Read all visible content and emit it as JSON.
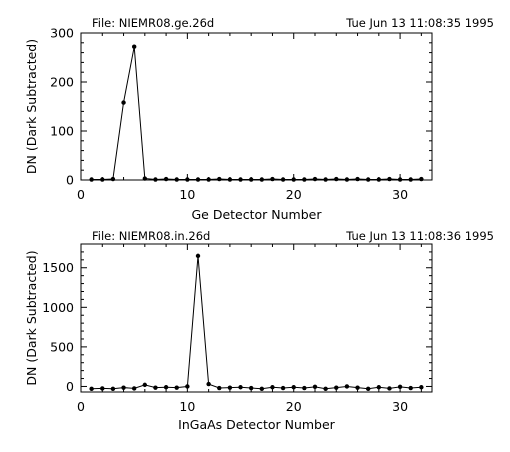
{
  "chart_data": [
    {
      "type": "line",
      "file_label": "File: NIEMR08.ge.26d",
      "timestamp": "Tue Jun 13 11:08:35 1995",
      "xlabel": "Ge Detector Number",
      "ylabel": "DN (Dark Subtracted)",
      "xlim": [
        0,
        33
      ],
      "ylim": [
        0,
        300
      ],
      "xticks": [
        0,
        10,
        20,
        30
      ],
      "yticks": [
        0,
        100,
        200,
        300
      ],
      "x": [
        1,
        2,
        3,
        4,
        5,
        6,
        7,
        8,
        9,
        10,
        11,
        12,
        13,
        14,
        15,
        16,
        17,
        18,
        19,
        20,
        21,
        22,
        23,
        24,
        25,
        26,
        27,
        28,
        29,
        30,
        31,
        32
      ],
      "y": [
        1,
        1,
        2,
        158,
        272,
        3,
        1,
        2,
        1,
        1,
        1,
        1,
        2,
        1,
        1,
        1,
        1,
        2,
        1,
        1,
        1,
        2,
        1,
        2,
        1,
        2,
        1,
        1,
        2,
        1,
        1,
        2
      ]
    },
    {
      "type": "line",
      "file_label": "File: NIEMR08.in.26d",
      "timestamp": "Tue Jun 13 11:08:36 1995",
      "xlabel": "InGaAs Detector Number",
      "ylabel": "DN (Dark Subtracted)",
      "xlim": [
        0,
        33
      ],
      "ylim": [
        -70,
        1800
      ],
      "xticks": [
        0,
        10,
        20,
        30
      ],
      "yticks": [
        0,
        500,
        1000,
        1500
      ],
      "x": [
        1,
        2,
        3,
        4,
        5,
        6,
        7,
        8,
        9,
        10,
        11,
        12,
        13,
        14,
        15,
        16,
        17,
        18,
        19,
        20,
        21,
        22,
        23,
        24,
        25,
        26,
        27,
        28,
        29,
        30,
        31,
        32
      ],
      "y": [
        -30,
        -25,
        -30,
        -15,
        -25,
        20,
        -15,
        -10,
        -15,
        0,
        1650,
        30,
        -20,
        -15,
        -10,
        -20,
        -30,
        -10,
        -20,
        -10,
        -20,
        -5,
        -30,
        -15,
        0,
        -15,
        -30,
        -10,
        -25,
        -5,
        -20,
        -10
      ]
    }
  ]
}
